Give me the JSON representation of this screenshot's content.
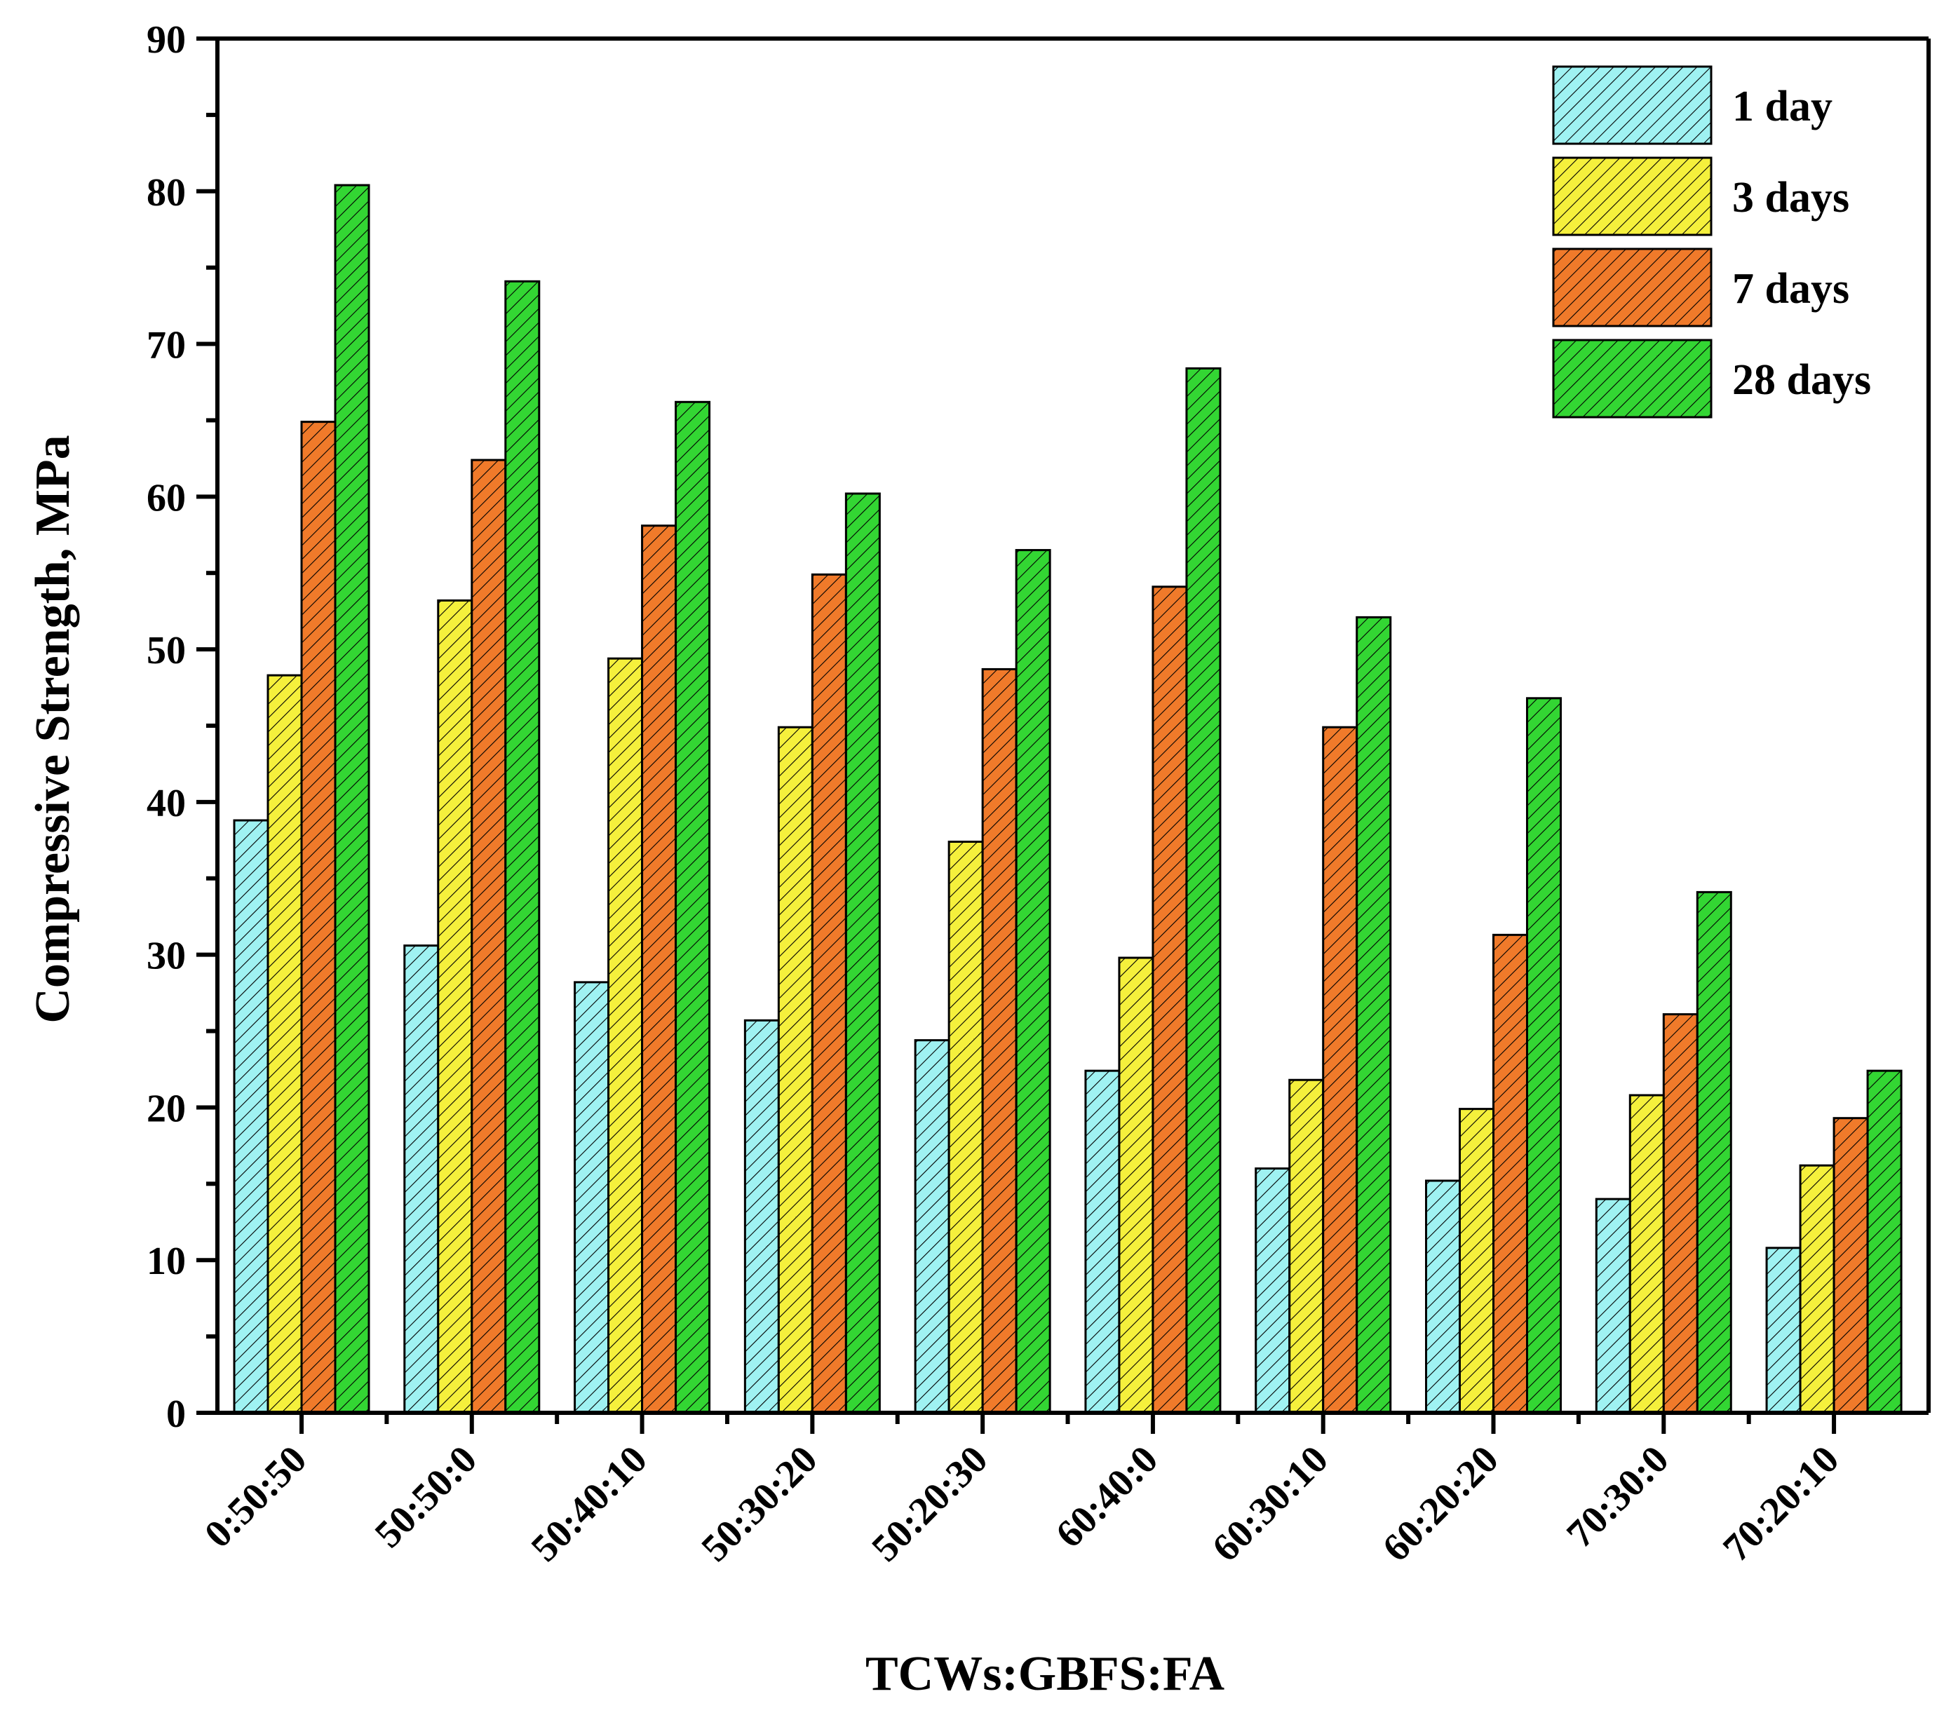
{
  "chart_data": {
    "type": "bar",
    "title": "",
    "xlabel": "TCWs:GBFS:FA",
    "ylabel": "Compressive Strength, MPa",
    "ylim": [
      0,
      90
    ],
    "yticks": [
      0,
      10,
      20,
      30,
      40,
      50,
      60,
      70,
      80,
      90
    ],
    "categories": [
      "0:50:50",
      "50:50:0",
      "50:40:10",
      "50:30:20",
      "50:20:30",
      "60:40:0",
      "60:30:10",
      "60:20:20",
      "70:30:0",
      "70:20:10"
    ],
    "series": [
      {
        "name": "1 day",
        "color": "#9ff2f2",
        "values": [
          38.8,
          30.6,
          28.2,
          25.7,
          24.4,
          22.4,
          16.0,
          15.2,
          14.0,
          10.8
        ]
      },
      {
        "name": "3 days",
        "color": "#f5f03c",
        "values": [
          48.3,
          53.2,
          49.4,
          44.9,
          37.4,
          29.8,
          21.8,
          19.9,
          20.8,
          16.2
        ]
      },
      {
        "name": "7 days",
        "color": "#f07a2a",
        "values": [
          64.9,
          62.4,
          58.1,
          54.9,
          48.7,
          54.1,
          44.9,
          31.3,
          26.1,
          19.3
        ]
      },
      {
        "name": "28 days",
        "color": "#33d633",
        "values": [
          80.4,
          74.1,
          66.2,
          60.2,
          56.5,
          68.4,
          52.1,
          46.8,
          34.1,
          22.4
        ]
      }
    ],
    "legend_position": "top-right",
    "hatch": "diagonal"
  }
}
